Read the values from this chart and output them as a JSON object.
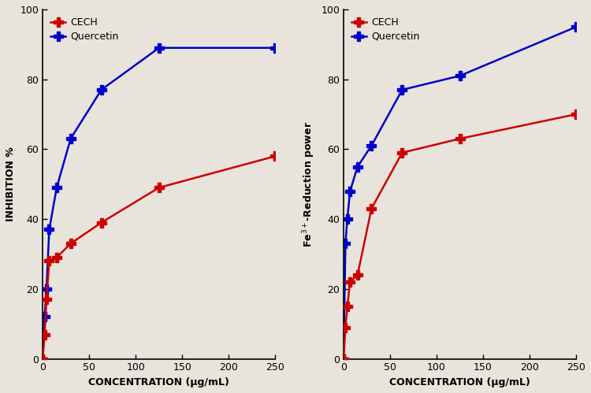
{
  "left": {
    "ylabel": "INHIBITION %",
    "xlabel": "CONCENTRATION (μg/mL)",
    "ylim": [
      0,
      100
    ],
    "xlim": [
      0,
      250
    ],
    "xticks": [
      0,
      50,
      100,
      150,
      200,
      250
    ],
    "yticks": [
      0,
      20,
      40,
      60,
      80,
      100
    ],
    "cech_x": [
      0,
      2,
      4,
      7,
      15,
      30,
      63,
      125,
      250
    ],
    "cech_y": [
      0,
      7,
      17,
      28,
      29,
      33,
      39,
      49,
      58
    ],
    "quercetin_x": [
      0,
      2,
      4,
      7,
      15,
      30,
      63,
      125,
      250
    ],
    "quercetin_y": [
      0,
      12,
      20,
      37,
      49,
      63,
      77,
      89,
      89
    ],
    "cech_color": "#cc0000",
    "quercetin_color": "#0000cc",
    "cech_marker": "P",
    "quercetin_marker": "P",
    "legend_labels": [
      "CECH",
      "Quercetin"
    ]
  },
  "right": {
    "ylabel": "Fe$^{3+}$-Reduction power",
    "xlabel": "CONCENTRATION (μg/mL)",
    "ylim": [
      0,
      100
    ],
    "xlim": [
      0,
      250
    ],
    "xticks": [
      0,
      50,
      100,
      150,
      200,
      250
    ],
    "yticks": [
      0,
      20,
      40,
      60,
      80,
      100
    ],
    "cech_x": [
      0,
      2,
      4,
      7,
      15,
      30,
      63,
      125,
      250
    ],
    "cech_y": [
      0,
      9,
      15,
      22,
      24,
      43,
      59,
      63,
      70
    ],
    "quercetin_x": [
      0,
      2,
      4,
      7,
      15,
      30,
      63,
      125,
      250
    ],
    "quercetin_y": [
      0,
      33,
      40,
      48,
      55,
      61,
      77,
      81,
      95
    ],
    "cech_color": "#cc0000",
    "quercetin_color": "#0000cc",
    "cech_marker": "P",
    "quercetin_marker": "P",
    "legend_labels": [
      "CECH",
      "Quercetin"
    ]
  },
  "bg_color": "#e8e4dc",
  "linewidth": 1.8,
  "markersize": 8,
  "tick_fontsize": 9,
  "label_fontsize": 9,
  "legend_fontsize": 9
}
